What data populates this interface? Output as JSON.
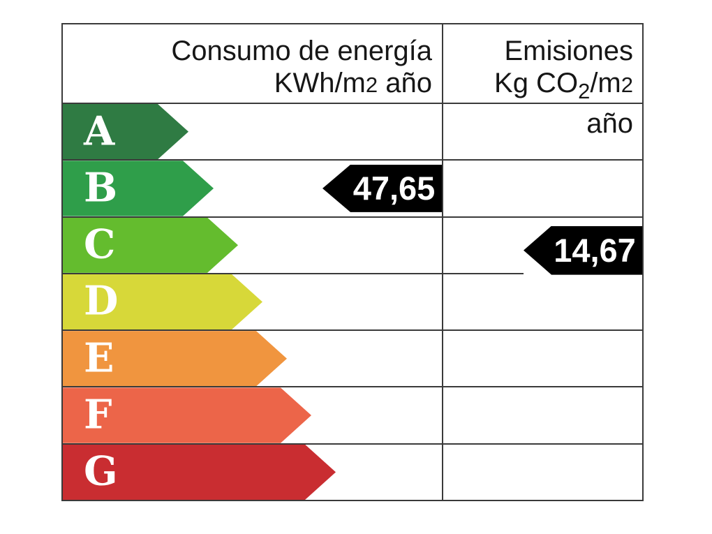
{
  "page": {
    "background": "#ffffff",
    "border_color": "#3a3a3a"
  },
  "header": {
    "consumption": {
      "title": "Consumo de energía",
      "unit_p1": "KWh/m",
      "unit_p2": "2",
      "unit_p3": " año"
    },
    "emissions": {
      "title": "Emisiones",
      "unit_p1": "Kg CO",
      "unit_p2": "2",
      "unit_p3": "/m",
      "unit_p4": "2",
      "unit_p5": " año"
    }
  },
  "ratings": [
    {
      "letter": "A",
      "color": "#2f7b43",
      "arrow_width": 180
    },
    {
      "letter": "B",
      "color": "#2f9e4a",
      "arrow_width": 216
    },
    {
      "letter": "C",
      "color": "#64bc2e",
      "arrow_width": 251
    },
    {
      "letter": "D",
      "color": "#d7d839",
      "arrow_width": 286
    },
    {
      "letter": "E",
      "color": "#f0953f",
      "arrow_width": 321
    },
    {
      "letter": "F",
      "color": "#ec6549",
      "arrow_width": 356
    },
    {
      "letter": "G",
      "color": "#c92d31",
      "arrow_width": 391
    }
  ],
  "indicators": [
    {
      "column": "consumption",
      "row": "B",
      "value": "47,65",
      "color": "#000000"
    },
    {
      "column": "emissions",
      "row": "C",
      "value": "14,67",
      "color": "#000000"
    }
  ],
  "chart_data": {
    "type": "table",
    "title": "Etiqueta de eficiencia energética",
    "columns": [
      "Consumo de energía KWh/m2 año",
      "Emisiones Kg CO2/m2 año"
    ],
    "categories": [
      "A",
      "B",
      "C",
      "D",
      "E",
      "F",
      "G"
    ],
    "category_colors": [
      "#2f7b43",
      "#2f9e4a",
      "#64bc2e",
      "#d7d839",
      "#f0953f",
      "#ec6549",
      "#c92d31"
    ],
    "values": [
      {
        "metric": "Consumo de energía (KWh/m2 año)",
        "rating": "B",
        "value": 47.65
      },
      {
        "metric": "Emisiones (Kg CO2/m2 año)",
        "rating": "C",
        "value": 14.67
      }
    ],
    "legend_position": "none",
    "grid": true
  }
}
